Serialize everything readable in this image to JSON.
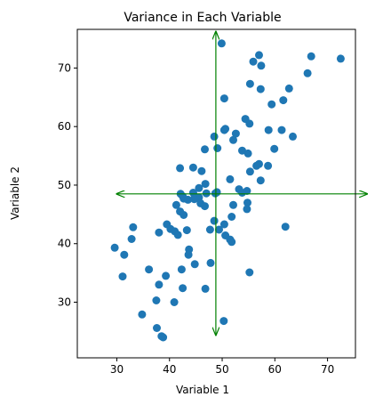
{
  "chart_data": {
    "type": "scatter",
    "title": "Variance in Each Variable",
    "xlabel": "Variable 1",
    "ylabel": "Variable 2",
    "xlim": [
      22.5,
      75.3
    ],
    "ylim": [
      20.5,
      76.6
    ],
    "xticks": [
      30,
      40,
      50,
      60,
      70
    ],
    "yticks": [
      30,
      40,
      50,
      60,
      70
    ],
    "grid": false,
    "colors": {
      "points": "#1f77b4",
      "arrows": "#008000"
    },
    "arrows": {
      "vertical": {
        "x": 48.8,
        "y_from": 24.4,
        "y_to": 76.2
      },
      "horizontal": {
        "y": 48.5,
        "x_from": 30.0,
        "x_to": 77.5
      }
    },
    "points": [
      [
        49.9,
        74.2
      ],
      [
        57.0,
        72.2
      ],
      [
        66.9,
        72.0
      ],
      [
        72.5,
        71.6
      ],
      [
        55.9,
        71.1
      ],
      [
        57.4,
        70.4
      ],
      [
        66.2,
        69.1
      ],
      [
        55.3,
        67.3
      ],
      [
        57.3,
        66.4
      ],
      [
        62.7,
        66.5
      ],
      [
        50.4,
        64.8
      ],
      [
        61.6,
        64.5
      ],
      [
        59.4,
        63.8
      ],
      [
        54.4,
        61.3
      ],
      [
        55.2,
        60.5
      ],
      [
        50.6,
        59.6
      ],
      [
        50.4,
        59.4
      ],
      [
        58.8,
        59.4
      ],
      [
        61.3,
        59.4
      ],
      [
        48.5,
        58.3
      ],
      [
        52.6,
        58.8
      ],
      [
        63.4,
        58.3
      ],
      [
        52.1,
        57.7
      ],
      [
        46.7,
        56.1
      ],
      [
        49.1,
        56.3
      ],
      [
        59.9,
        56.2
      ],
      [
        53.8,
        55.9
      ],
      [
        54.9,
        55.4
      ],
      [
        57.0,
        53.6
      ],
      [
        56.5,
        53.3
      ],
      [
        58.7,
        53.3
      ],
      [
        42.0,
        52.9
      ],
      [
        44.5,
        53.0
      ],
      [
        46.1,
        52.4
      ],
      [
        55.3,
        52.3
      ],
      [
        51.5,
        51.0
      ],
      [
        57.3,
        50.8
      ],
      [
        46.8,
        50.2
      ],
      [
        45.6,
        49.5
      ],
      [
        53.2,
        49.3
      ],
      [
        54.7,
        49.0
      ],
      [
        44.5,
        48.7
      ],
      [
        53.8,
        48.7
      ],
      [
        42.1,
        48.5
      ],
      [
        42.5,
        48.1
      ],
      [
        44.8,
        48.1
      ],
      [
        47.0,
        48.6
      ],
      [
        48.7,
        48.6
      ],
      [
        49.0,
        48.8
      ],
      [
        42.7,
        47.7
      ],
      [
        43.5,
        47.5
      ],
      [
        45.6,
        47.9
      ],
      [
        44.7,
        47.6
      ],
      [
        45.9,
        46.9
      ],
      [
        54.8,
        47.0
      ],
      [
        41.3,
        46.6
      ],
      [
        46.7,
        46.4
      ],
      [
        52.1,
        46.6
      ],
      [
        54.7,
        45.9
      ],
      [
        42.0,
        45.5
      ],
      [
        42.7,
        44.9
      ],
      [
        51.8,
        44.6
      ],
      [
        50.4,
        43.3
      ],
      [
        48.5,
        43.9
      ],
      [
        39.5,
        43.3
      ],
      [
        40.2,
        42.5
      ],
      [
        41.0,
        42.1
      ],
      [
        38.0,
        41.9
      ],
      [
        41.6,
        41.5
      ],
      [
        43.3,
        42.3
      ],
      [
        47.7,
        42.4
      ],
      [
        49.4,
        42.4
      ],
      [
        62.0,
        42.9
      ],
      [
        33.1,
        42.8
      ],
      [
        32.8,
        40.8
      ],
      [
        50.6,
        41.4
      ],
      [
        51.5,
        40.7
      ],
      [
        51.8,
        40.3
      ],
      [
        29.6,
        39.3
      ],
      [
        43.7,
        39.0
      ],
      [
        43.6,
        38.1
      ],
      [
        31.4,
        38.1
      ],
      [
        38.0,
        33.0
      ],
      [
        36.1,
        35.6
      ],
      [
        42.3,
        35.6
      ],
      [
        44.8,
        36.5
      ],
      [
        47.8,
        36.7
      ],
      [
        55.2,
        35.1
      ],
      [
        39.3,
        34.5
      ],
      [
        31.1,
        34.4
      ],
      [
        42.5,
        32.4
      ],
      [
        46.8,
        32.3
      ],
      [
        34.8,
        27.9
      ],
      [
        37.5,
        30.3
      ],
      [
        40.9,
        30.0
      ],
      [
        50.3,
        26.8
      ],
      [
        37.6,
        25.6
      ],
      [
        38.5,
        24.2
      ],
      [
        38.8,
        24.0
      ]
    ]
  }
}
